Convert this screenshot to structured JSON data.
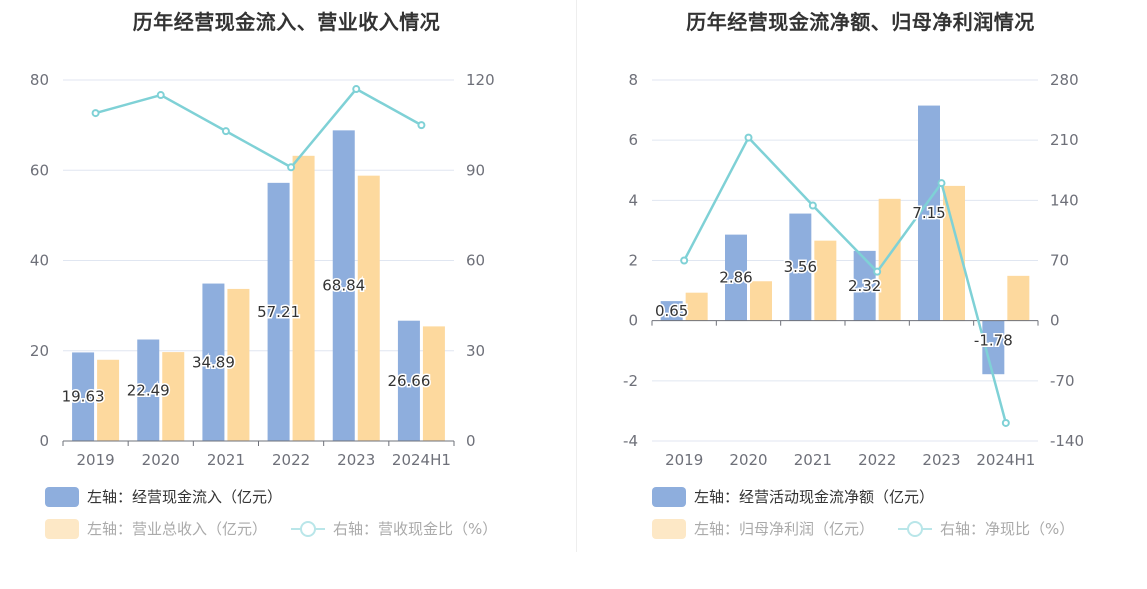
{
  "colors": {
    "bar_primary": "#8eaedd",
    "bar_secondary": "#fdd99e",
    "line": "#7fd1d6",
    "grid": "#e0e6f1",
    "axis": "#6e7079"
  },
  "chart_data": [
    {
      "type": "bar",
      "title": "历年经营现金流入、营业收入情况",
      "categories": [
        "2019",
        "2020",
        "2021",
        "2022",
        "2023",
        "2024H1"
      ],
      "left_axis": {
        "ticks": [
          "0",
          "20",
          "40",
          "60",
          "80"
        ],
        "ylim": [
          0,
          80
        ]
      },
      "right_axis": {
        "ticks": [
          "0",
          "30",
          "60",
          "90",
          "120"
        ],
        "ylim": [
          0,
          120
        ]
      },
      "series": [
        {
          "name": "左轴：经营现金流入（亿元）",
          "kind": "bar",
          "axis": "left",
          "values": [
            19.63,
            22.49,
            34.89,
            57.21,
            68.84,
            26.66
          ],
          "labels": [
            "19.63",
            "22.49",
            "34.89",
            "57.21",
            "68.84",
            "26.66"
          ]
        },
        {
          "name": "左轴：营业总收入（亿元）",
          "kind": "bar",
          "axis": "left",
          "values": [
            18.0,
            19.7,
            33.7,
            63.2,
            58.8,
            25.4
          ]
        },
        {
          "name": "右轴：营收现金比（%）",
          "kind": "line",
          "axis": "right",
          "values": [
            109,
            115,
            103,
            91,
            117,
            105
          ]
        }
      ]
    },
    {
      "type": "bar",
      "title": "历年经营现金流净额、归母净利润情况",
      "categories": [
        "2019",
        "2020",
        "2021",
        "2022",
        "2023",
        "2024H1"
      ],
      "left_axis": {
        "ticks": [
          "-4",
          "-2",
          "0",
          "2",
          "4",
          "6",
          "8"
        ],
        "ylim": [
          -4,
          8
        ]
      },
      "right_axis": {
        "ticks": [
          "-140",
          "-70",
          "0",
          "70",
          "140",
          "210",
          "280"
        ],
        "ylim": [
          -140,
          280
        ]
      },
      "series": [
        {
          "name": "左轴：经营活动现金流净额（亿元）",
          "kind": "bar",
          "axis": "left",
          "values": [
            0.65,
            2.86,
            3.56,
            2.32,
            7.15,
            -1.78
          ],
          "labels": [
            "0.65",
            "2.86",
            "3.56",
            "2.32",
            "7.15",
            "-1.78"
          ]
        },
        {
          "name": "左轴：归母净利润（亿元）",
          "kind": "bar",
          "axis": "left",
          "values": [
            0.93,
            1.31,
            2.66,
            4.05,
            4.48,
            1.49
          ]
        },
        {
          "name": "右轴：净现比（%）",
          "kind": "line",
          "axis": "right",
          "values": [
            70,
            213,
            134,
            57,
            160,
            -119
          ]
        }
      ]
    }
  ]
}
